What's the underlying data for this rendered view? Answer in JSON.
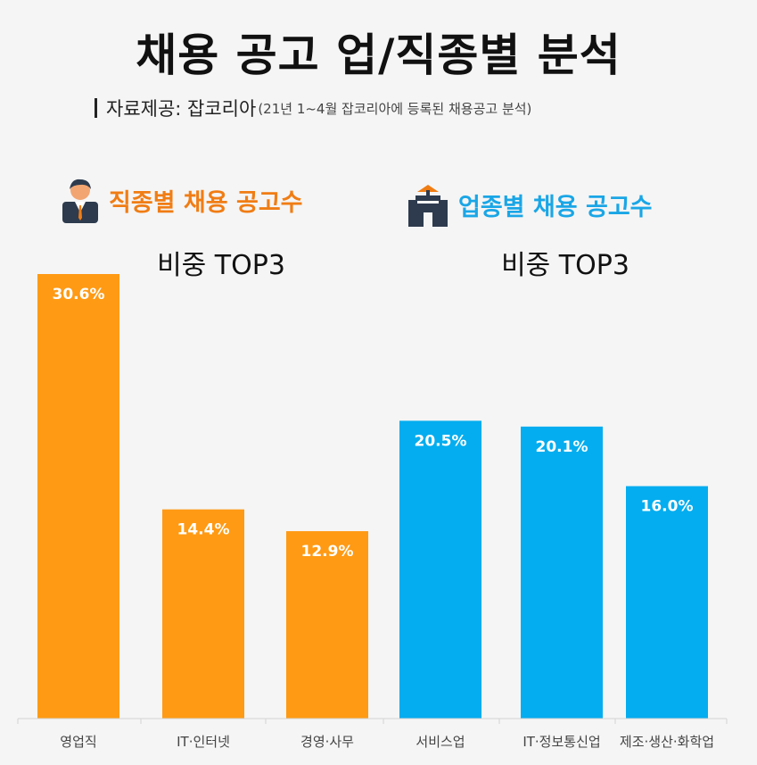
{
  "title": "채용 공고 업/직종별 분석",
  "source": {
    "main": "자료제공: 잡코리아",
    "note": "(21년 1~4월 잡코리아에 등록된 채용공고 분석)"
  },
  "groups": [
    {
      "heading": "직종별 채용 공고수",
      "subheading": "비중 TOP3",
      "color": "#ff9a14",
      "heading_color": "#f07d14",
      "icon": "person-icon"
    },
    {
      "heading": "업종별 채용 공고수",
      "subheading": "비중 TOP3",
      "color": "#04adef",
      "heading_color": "#1aa6e6",
      "icon": "building-icon"
    }
  ],
  "chart_data": {
    "type": "bar",
    "categories": [
      "영업직",
      "IT·인터넷",
      "경영·사무",
      "서비스업",
      "IT·정보통신업",
      "제조·생산·화학업"
    ],
    "values": [
      30.6,
      14.4,
      12.9,
      20.5,
      20.1,
      16.0
    ],
    "value_labels": [
      "30.6%",
      "14.4%",
      "12.9%",
      "20.5%",
      "20.1%",
      "16.0%"
    ],
    "group_index": [
      0,
      0,
      0,
      1,
      1,
      1
    ],
    "unit": "%",
    "ylim": [
      0,
      30.6
    ]
  }
}
